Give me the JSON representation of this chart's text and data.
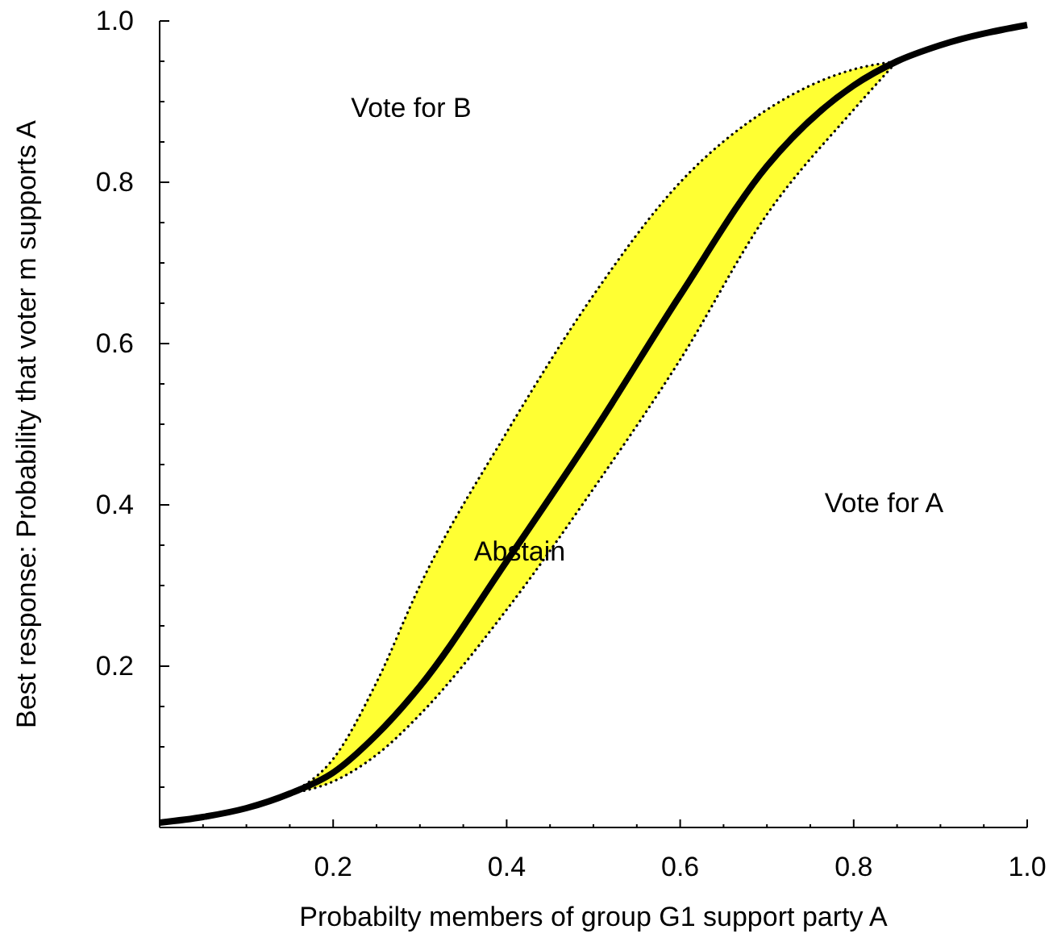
{
  "chart_data": {
    "type": "line",
    "xlabel": "Probabilty members of group G1 support party A",
    "ylabel": "Best response: Probability that voter m supports A",
    "x": [
      0,
      0.05,
      0.1,
      0.15,
      0.2,
      0.25,
      0.3,
      0.4,
      0.5,
      0.6,
      0.7,
      0.8,
      0.85,
      0.9,
      1
    ],
    "series": [
      {
        "color": "#000000",
        "line_style": "solid",
        "values": [
          0.006,
          0.013,
          0.024,
          0.042,
          0.068,
          0.115,
          0.175,
          0.33,
          0.49,
          0.66,
          0.82,
          0.92,
          0.95,
          0.97,
          0.995
        ],
        "lower": [
          null,
          null,
          null,
          0.042,
          0.057,
          0.09,
          0.14,
          0.27,
          0.42,
          0.58,
          0.76,
          0.89,
          0.95,
          null,
          null
        ],
        "upper": [
          null,
          null,
          null,
          0.042,
          0.085,
          0.18,
          0.3,
          0.49,
          0.66,
          0.8,
          0.89,
          0.94,
          0.95,
          null,
          null
        ]
      }
    ],
    "xlim": [
      0,
      1
    ],
    "ylim": [
      0,
      1
    ],
    "xticks": [
      {
        "value": 0.05,
        "label": null
      },
      {
        "value": 0.1,
        "label": null
      },
      {
        "value": 0.15,
        "label": null
      },
      {
        "value": 0.2,
        "label": "0.2"
      },
      {
        "value": 0.25,
        "label": null
      },
      {
        "value": 0.3,
        "label": null
      },
      {
        "value": 0.35,
        "label": null
      },
      {
        "value": 0.4,
        "label": "0.4"
      },
      {
        "value": 0.45,
        "label": null
      },
      {
        "value": 0.5,
        "label": null
      },
      {
        "value": 0.55,
        "label": null
      },
      {
        "value": 0.6,
        "label": "0.6"
      },
      {
        "value": 0.65,
        "label": null
      },
      {
        "value": 0.7,
        "label": null
      },
      {
        "value": 0.75,
        "label": null
      },
      {
        "value": 0.8,
        "label": "0.8"
      },
      {
        "value": 0.85,
        "label": null
      },
      {
        "value": 0.9,
        "label": null
      },
      {
        "value": 0.95,
        "label": null
      },
      {
        "value": 1,
        "label": "1.0"
      }
    ],
    "yticks": [
      {
        "value": 0.05,
        "label": null
      },
      {
        "value": 0.1,
        "label": null
      },
      {
        "value": 0.15,
        "label": null
      },
      {
        "value": 0.2,
        "label": "0.2"
      },
      {
        "value": 0.25,
        "label": null
      },
      {
        "value": 0.3,
        "label": null
      },
      {
        "value": 0.35,
        "label": null
      },
      {
        "value": 0.4,
        "label": "0.4"
      },
      {
        "value": 0.45,
        "label": null
      },
      {
        "value": 0.5,
        "label": null
      },
      {
        "value": 0.55,
        "label": null
      },
      {
        "value": 0.6,
        "label": "0.6"
      },
      {
        "value": 0.65,
        "label": null
      },
      {
        "value": 0.7,
        "label": null
      },
      {
        "value": 0.75,
        "label": null
      },
      {
        "value": 0.8,
        "label": "0.8"
      },
      {
        "value": 0.85,
        "label": null
      },
      {
        "value": 0.9,
        "label": null
      },
      {
        "value": 0.95,
        "label": null
      },
      {
        "value": 1,
        "label": "1.0"
      }
    ],
    "grid": false,
    "marker": "none",
    "annotations": [
      "Vote for B",
      {
        "text": "Abstain",
        "x": 0.415,
        "y": 0.34
      },
      "Vote for A"
    ]
  }
}
